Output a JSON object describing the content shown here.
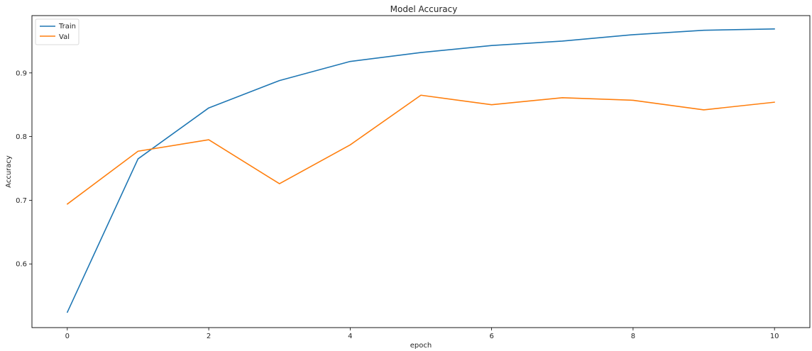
{
  "chart_data": {
    "type": "line",
    "title": "Model Accuracy",
    "xlabel": "epoch",
    "ylabel": "Accuracy",
    "xlim": [
      -0.5,
      10.5
    ],
    "ylim": [
      0.5,
      0.99
    ],
    "xticks": [
      0,
      2,
      4,
      6,
      8,
      10
    ],
    "yticks": [
      0.6,
      0.7,
      0.8,
      0.9
    ],
    "grid": false,
    "legend_position": "top-left",
    "x": [
      0,
      1,
      2,
      3,
      4,
      5,
      6,
      7,
      8,
      9,
      10
    ],
    "series": [
      {
        "name": "Train",
        "color": "#1f77b4",
        "values": [
          0.524,
          0.765,
          0.845,
          0.888,
          0.918,
          0.932,
          0.943,
          0.95,
          0.96,
          0.967,
          0.969
        ]
      },
      {
        "name": "Val",
        "color": "#ff7f0e",
        "values": [
          0.694,
          0.777,
          0.795,
          0.726,
          0.787,
          0.865,
          0.85,
          0.861,
          0.857,
          0.842,
          0.854
        ]
      }
    ]
  }
}
